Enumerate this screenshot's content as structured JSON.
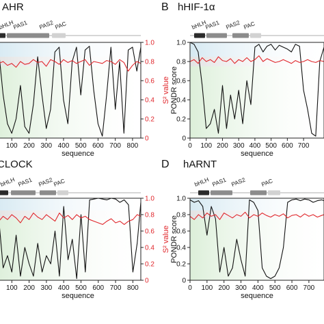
{
  "colors": {
    "disorder_line": "#111111",
    "order_line": "#e0262b",
    "band_top": "#d6e9f2",
    "band_mid": "#e3e3e3",
    "band_low": "#dcefd9",
    "domain_dark": "#2b2b2b",
    "domain_mid": "#8c8c8c",
    "domain_light": "#d2d2d2",
    "frame": "#222222"
  },
  "panels": [
    {
      "id": "A",
      "letter": "",
      "title": "hAHR",
      "title_visible": "AHR",
      "xlabel": "sequence",
      "left_ylabel": "",
      "right_ylabel": "S² value",
      "xticks": [
        100,
        200,
        300,
        400,
        500,
        600,
        700,
        800
      ],
      "right_yticks": [
        "0",
        "0.2",
        "0.4",
        "0.6",
        "0.8",
        "1.0"
      ],
      "left_yticks": [],
      "domains": [
        {
          "label": "bHLH",
          "shade": "dark"
        },
        {
          "label": "PAS1",
          "shade": "mid"
        },
        {
          "label": "PAS2",
          "shade": "mid"
        },
        {
          "label": "PAC",
          "shade": "light"
        }
      ]
    },
    {
      "id": "B",
      "letter": "B",
      "title": "hHIF-1α",
      "xlabel": "sequence",
      "left_ylabel": "PONDR score",
      "right_ylabel": "",
      "xticks": [
        0,
        100,
        200,
        300,
        400,
        500,
        600,
        700
      ],
      "left_yticks": [
        "0",
        "0.2",
        "0.4",
        "0.6",
        "0.8",
        "1.0"
      ],
      "right_yticks": [],
      "domains": [
        {
          "label": "bHLH",
          "shade": "dark"
        },
        {
          "label": "PAS1",
          "shade": "mid"
        },
        {
          "label": "PAS2",
          "shade": "mid"
        },
        {
          "label": "PAC",
          "shade": "light"
        }
      ]
    },
    {
      "id": "C",
      "letter": "",
      "title": "CLOCK",
      "xlabel": "sequence",
      "left_ylabel": "",
      "right_ylabel": "S² value",
      "xticks": [
        100,
        200,
        300,
        400,
        500,
        600,
        700,
        800
      ],
      "right_yticks": [
        "0",
        "0.2",
        "0.4",
        "0.6",
        "0.8",
        "1.0"
      ],
      "left_yticks": [],
      "domains": [
        {
          "label": "bHLH",
          "shade": "dark"
        },
        {
          "label": "PAS1",
          "shade": "mid"
        },
        {
          "label": "PAS2",
          "shade": "mid"
        },
        {
          "label": "PAC",
          "shade": "light"
        }
      ]
    },
    {
      "id": "D",
      "letter": "D",
      "title": "hARNT",
      "xlabel": "sequence",
      "left_ylabel": "PONDR score",
      "right_ylabel": "",
      "xticks": [
        0,
        100,
        200,
        300,
        400,
        500,
        600,
        700
      ],
      "left_yticks": [
        "0",
        "0.2",
        "0.4",
        "0.6",
        "0.8",
        "1.0"
      ],
      "right_yticks": [],
      "domains": [
        {
          "label": "bHLH",
          "shade": "dark"
        },
        {
          "label": "PAS1",
          "shade": "mid"
        },
        {
          "label": "PAS2",
          "shade": "mid"
        },
        {
          "label": "PAC",
          "shade": "light"
        }
      ]
    }
  ],
  "chart_data": [
    {
      "type": "line",
      "panel": "A",
      "title": "hAHR",
      "xlabel": "sequence",
      "ylabel_right": "S² value",
      "xlim": [
        0,
        848
      ],
      "ylim": [
        0,
        1.0
      ],
      "x": [
        0,
        25,
        50,
        75,
        100,
        125,
        150,
        175,
        200,
        225,
        250,
        275,
        300,
        325,
        350,
        375,
        400,
        425,
        450,
        475,
        500,
        525,
        550,
        575,
        600,
        625,
        650,
        675,
        700,
        725,
        750,
        775,
        800,
        825,
        848
      ],
      "series": [
        {
          "name": "",
          "color": "#111111",
          "values": [
            0.95,
            0.9,
            0.45,
            0.15,
            0.05,
            0.2,
            0.55,
            0.12,
            0.05,
            0.35,
            0.85,
            0.45,
            0.1,
            0.3,
            0.9,
            0.95,
            0.4,
            0.15,
            0.8,
            0.95,
            0.45,
            0.92,
            0.96,
            0.5,
            0.15,
            0.02,
            0.45,
            0.95,
            0.3,
            0.8,
            0.05,
            0.92,
            0.95,
            0.7,
            0.95
          ]
        },
        {
          "name": "",
          "color": "#e0262b",
          "values": [
            0.82,
            0.78,
            0.8,
            0.76,
            0.78,
            0.74,
            0.8,
            0.77,
            0.78,
            0.82,
            0.79,
            0.8,
            0.75,
            0.82,
            0.8,
            0.77,
            0.82,
            0.79,
            0.81,
            0.78,
            0.8,
            0.82,
            0.76,
            0.8,
            0.79,
            0.78,
            0.81,
            0.8,
            0.77,
            0.82,
            0.79,
            0.7,
            0.76,
            0.8,
            0.78
          ]
        }
      ]
    },
    {
      "type": "line",
      "panel": "B",
      "title": "hHIF-1α",
      "xlabel": "sequence",
      "ylabel_left": "PONDR score",
      "xlim": [
        0,
        826
      ],
      "ylim": [
        0,
        1.0
      ],
      "x": [
        0,
        25,
        50,
        75,
        100,
        125,
        150,
        175,
        200,
        225,
        250,
        275,
        300,
        325,
        350,
        375,
        400,
        425,
        450,
        475,
        500,
        525,
        550,
        575,
        600,
        625,
        650,
        675,
        700,
        725,
        750,
        775,
        800,
        826
      ],
      "series": [
        {
          "name": "",
          "color": "#111111",
          "values": [
            1.0,
            0.98,
            0.9,
            0.55,
            0.1,
            0.15,
            0.3,
            0.05,
            0.55,
            0.1,
            0.45,
            0.2,
            0.5,
            0.15,
            0.6,
            0.35,
            0.95,
            0.98,
            0.9,
            0.96,
            0.98,
            0.92,
            0.97,
            0.95,
            0.93,
            0.9,
            0.98,
            0.96,
            0.5,
            0.3,
            0.05,
            0.02,
            0.8,
            0.95
          ]
        },
        {
          "name": "",
          "color": "#e0262b",
          "values": [
            0.8,
            0.82,
            0.78,
            0.84,
            0.8,
            0.82,
            0.79,
            0.85,
            0.81,
            0.8,
            0.83,
            0.78,
            0.82,
            0.8,
            0.84,
            0.8,
            0.82,
            0.86,
            0.8,
            0.83,
            0.81,
            0.79,
            0.8,
            0.82,
            0.8,
            0.78,
            0.81,
            0.79,
            0.8,
            0.82,
            0.8,
            0.79,
            0.81,
            0.8
          ]
        }
      ]
    },
    {
      "type": "line",
      "panel": "C",
      "title": "CLOCK",
      "xlabel": "sequence",
      "ylabel_right": "S² value",
      "xlim": [
        0,
        846
      ],
      "ylim": [
        0,
        1.0
      ],
      "x": [
        0,
        25,
        50,
        75,
        100,
        125,
        150,
        175,
        200,
        225,
        250,
        275,
        300,
        325,
        350,
        375,
        400,
        425,
        450,
        475,
        500,
        525,
        550,
        575,
        600,
        625,
        650,
        675,
        700,
        725,
        750,
        775,
        800,
        825,
        846
      ],
      "series": [
        {
          "name": "",
          "color": "#111111",
          "values": [
            0.9,
            0.75,
            0.15,
            0.3,
            0.1,
            0.55,
            0.05,
            0.4,
            0.2,
            0.05,
            0.45,
            0.1,
            0.3,
            0.2,
            0.6,
            0.05,
            0.9,
            0.25,
            0.5,
            0.02,
            0.8,
            0.1,
            0.98,
            0.99,
            1.0,
            0.99,
            0.98,
            1.0,
            0.99,
            0.95,
            0.98,
            0.92,
            0.1,
            0.45,
            0.95
          ]
        },
        {
          "name": "",
          "color": "#e0262b",
          "values": [
            0.76,
            0.72,
            0.78,
            0.74,
            0.8,
            0.76,
            0.7,
            0.78,
            0.74,
            0.82,
            0.77,
            0.74,
            0.8,
            0.76,
            0.72,
            0.82,
            0.76,
            0.79,
            0.74,
            0.8,
            0.76,
            0.78,
            0.74,
            0.72,
            0.7,
            0.68,
            0.72,
            0.75,
            0.7,
            0.72,
            0.68,
            0.72,
            0.74,
            0.8,
            0.78
          ]
        }
      ]
    },
    {
      "type": "line",
      "panel": "D",
      "title": "hARNT",
      "xlabel": "sequence",
      "ylabel_left": "PONDR score",
      "xlim": [
        0,
        789
      ],
      "ylim": [
        0,
        1.0
      ],
      "x": [
        0,
        25,
        50,
        75,
        100,
        125,
        150,
        175,
        200,
        225,
        250,
        275,
        300,
        325,
        350,
        375,
        400,
        425,
        450,
        475,
        500,
        525,
        550,
        575,
        600,
        625,
        650,
        675,
        700,
        725,
        750,
        775,
        789
      ],
      "series": [
        {
          "name": "",
          "color": "#111111",
          "values": [
            0.98,
            0.95,
            0.97,
            0.9,
            0.55,
            0.9,
            0.75,
            0.1,
            0.4,
            0.05,
            0.15,
            0.5,
            0.25,
            0.05,
            0.98,
            0.95,
            0.85,
            0.15,
            0.05,
            0.02,
            0.05,
            0.15,
            0.4,
            0.95,
            0.98,
            0.99,
            0.97,
            0.99,
            0.98,
            0.95,
            0.97,
            0.98,
            0.97
          ]
        },
        {
          "name": "",
          "color": "#e0262b",
          "values": [
            0.78,
            0.74,
            0.8,
            0.76,
            0.82,
            0.78,
            0.8,
            0.74,
            0.82,
            0.79,
            0.76,
            0.8,
            0.78,
            0.83,
            0.76,
            0.8,
            0.78,
            0.82,
            0.79,
            0.77,
            0.8,
            0.78,
            0.81,
            0.76,
            0.79,
            0.8,
            0.77,
            0.81,
            0.78,
            0.8,
            0.77,
            0.79,
            0.8
          ]
        }
      ]
    }
  ]
}
